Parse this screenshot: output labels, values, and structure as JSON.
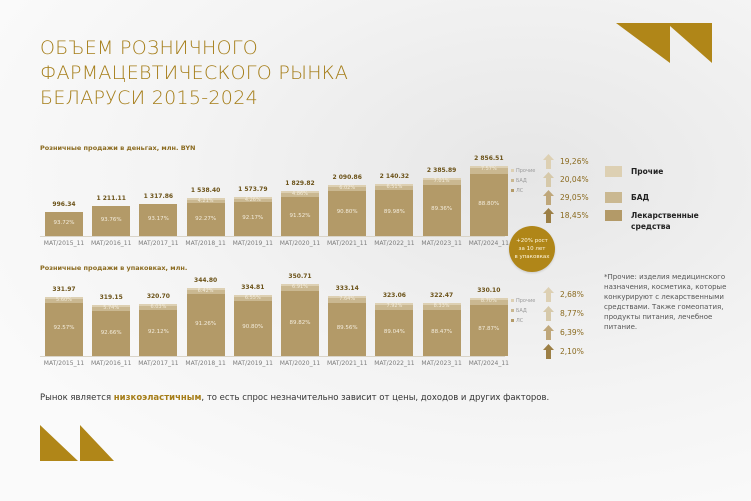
{
  "title": {
    "line1": "Объем розничного",
    "line2": "фармацевтического рынка",
    "line3": "Беларуси 2015-2024"
  },
  "colors": {
    "brand": "#a57d18",
    "lekarstva": "#b39a68",
    "bad": "#cab891",
    "prochie": "#ddd0b3",
    "circle": "#b08618"
  },
  "legend": {
    "items": [
      {
        "label": "Прочие",
        "color": "#ddd0b3"
      },
      {
        "label": "БАД",
        "color": "#cab891"
      },
      {
        "label": "Лекарственные средства",
        "color": "#b39a68"
      }
    ]
  },
  "growth_circle": {
    "line1": "+20% рост",
    "line2": "за 10 лет",
    "line3": "в упаковках"
  },
  "note": "*Прочие: изделия медицинского назначения, косметика, которые конкурируют с лекарственными средствами. Также гомеопатия, продукты питания, лечебное питание.",
  "bottom_text": {
    "before": "Рынок является ",
    "bold": "низкоэластичным",
    "after": ", то есть спрос незначительно зависит от цены, доходов и других факторов."
  },
  "chart_data": [
    {
      "type": "bar",
      "stacked": true,
      "title": "Розничные продажи в деньгах, млн. BYN",
      "categories": [
        "MAT/2015_11",
        "MAT/2016_11",
        "MAT/2017_11",
        "MAT/2018_11",
        "MAT/2019_11",
        "MAT/2020_11",
        "MAT/2021_11",
        "MAT/2022_11",
        "MAT/2023_11",
        "MAT/2024_11"
      ],
      "totals": [
        "996.34",
        "1 211.11",
        "1 317.86",
        "1 538.40",
        "1 573.79",
        "1 829.82",
        "2 090.86",
        "2 140.32",
        "2 385.89",
        "2 856.51"
      ],
      "total_values": [
        996.34,
        1211.11,
        1317.86,
        1538.4,
        1573.79,
        1829.82,
        2090.86,
        2140.32,
        2385.89,
        2856.51
      ],
      "series": [
        {
          "name": "ЛС",
          "values": [
            93.72,
            93.76,
            93.17,
            92.27,
            92.17,
            91.52,
            90.8,
            89.98,
            89.36,
            88.8
          ],
          "labels": [
            "93.72%",
            "93.76%",
            "93.17%",
            "92.27%",
            "92.17%",
            "91.52%",
            "90.80%",
            "89.98%",
            "89.36%",
            "88.80%"
          ]
        },
        {
          "name": "Прочие + БАД",
          "labels": [
            "",
            "",
            "",
            "4.21%",
            "4.26%",
            "4.86%",
            "6.02%",
            "6.51%",
            "7.01%",
            "7.57%"
          ]
        }
      ],
      "mini_legend": [
        "Прочие",
        "БАД",
        "ЛС"
      ],
      "growth": [
        "19,26%",
        "20,04%",
        "29,05%",
        "18,45%"
      ],
      "xlabel": "",
      "ylabel": "млн. BYN"
    },
    {
      "type": "bar",
      "stacked": true,
      "title": "Розничные продажи в упаковках, млн.",
      "categories": [
        "MAT/2015_11",
        "MAT/2016_11",
        "MAT/2017_11",
        "MAT/2018_11",
        "MAT/2019_11",
        "MAT/2020_11",
        "MAT/2021_11",
        "MAT/2022_11",
        "MAT/2023_11",
        "MAT/2024_11"
      ],
      "totals": [
        "331.97",
        "319.15",
        "320.70",
        "344.80",
        "334.81",
        "350.71",
        "333.14",
        "323.06",
        "322.47",
        "330.10"
      ],
      "total_values": [
        331.97,
        319.15,
        320.7,
        344.8,
        334.81,
        350.71,
        333.14,
        323.06,
        322.47,
        330.1
      ],
      "series": [
        {
          "name": "ЛС",
          "values": [
            92.57,
            92.66,
            92.12,
            91.26,
            90.8,
            89.82,
            89.56,
            89.04,
            88.47,
            87.87
          ],
          "labels": [
            "92.57%",
            "92.66%",
            "92.12%",
            "91.26%",
            "90.80%",
            "89.82%",
            "89.56%",
            "89.04%",
            "88.47%",
            "87.87%"
          ]
        },
        {
          "name": "Прочие + БАД",
          "labels": [
            "5.60%",
            "5.74%",
            "6.03%",
            "6.42%",
            "6.55%",
            "6.91%",
            "7.64%",
            "7.92%",
            "8.33%",
            "8.70%"
          ]
        }
      ],
      "mini_legend": [
        "Прочие",
        "БАД",
        "ЛС"
      ],
      "growth": [
        "2,68%",
        "8,77%",
        "6,39%",
        "2,10%"
      ],
      "xlabel": "",
      "ylabel": "млн. упаковок"
    }
  ]
}
